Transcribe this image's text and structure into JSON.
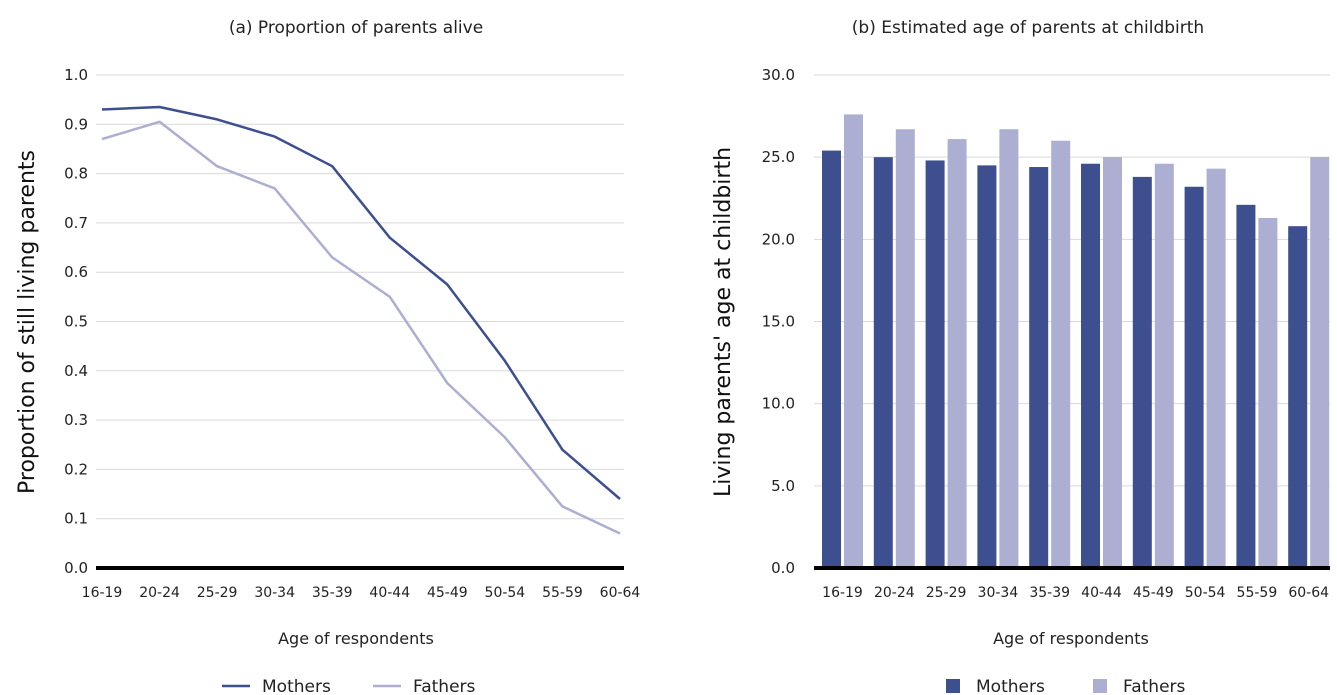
{
  "chart_data": [
    {
      "type": "line",
      "title": "(a) Proportion of parents alive",
      "xlabel": "Age of respondents",
      "ylabel": "Proportion of still living parents",
      "ylim": [
        0,
        1
      ],
      "yticks": [
        "0.0",
        "0.1",
        "0.2",
        "0.3",
        "0.4",
        "0.5",
        "0.6",
        "0.7",
        "0.8",
        "0.9",
        "1.0"
      ],
      "grid": true,
      "legend_position": "bottom",
      "categories": [
        "16-19",
        "20-24",
        "25-29",
        "30-34",
        "35-39",
        "40-44",
        "45-49",
        "50-54",
        "55-59",
        "60-64"
      ],
      "series": [
        {
          "name": "Mothers",
          "color": "#3d4f8f",
          "values": [
            0.93,
            0.935,
            0.91,
            0.875,
            0.815,
            0.67,
            0.575,
            0.42,
            0.24,
            0.14
          ]
        },
        {
          "name": "Fathers",
          "color": "#acaed2",
          "values": [
            0.87,
            0.905,
            0.815,
            0.77,
            0.63,
            0.55,
            0.375,
            0.265,
            0.125,
            0.07
          ]
        }
      ]
    },
    {
      "type": "bar",
      "title": "(b) Estimated age of parents at childbirth",
      "xlabel": "Age of respondents",
      "ylabel": "Living parents' age at childbirth",
      "ylim": [
        0,
        30
      ],
      "yticks": [
        "0.0",
        "5.0",
        "10.0",
        "15.0",
        "20.0",
        "25.0",
        "30.0"
      ],
      "grid": true,
      "legend_position": "bottom",
      "categories": [
        "16-19",
        "20-24",
        "25-29",
        "30-34",
        "35-39",
        "40-44",
        "45-49",
        "50-54",
        "55-59",
        "60-64"
      ],
      "series": [
        {
          "name": "Mothers",
          "color": "#3d4f8f",
          "values": [
            25.4,
            25.0,
            24.8,
            24.5,
            24.4,
            24.6,
            23.8,
            23.2,
            22.1,
            20.8
          ]
        },
        {
          "name": "Fathers",
          "color": "#acaed2",
          "values": [
            27.6,
            26.7,
            26.1,
            26.7,
            26.0,
            25.0,
            24.6,
            24.3,
            21.3,
            25.0
          ]
        }
      ]
    }
  ]
}
